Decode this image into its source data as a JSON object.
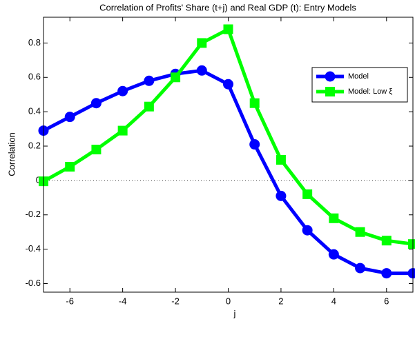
{
  "chart_data": {
    "type": "line",
    "title": "Correlation of Profits' Share (t+j) and Real GDP (t): Entry Models",
    "x_label": "j",
    "y_label": "Correlation",
    "x": [
      -7,
      -6,
      -5,
      -4,
      -3,
      -2,
      -1,
      0,
      1,
      2,
      3,
      4,
      5,
      6,
      7
    ],
    "series": [
      {
        "name": "Model",
        "color": "#0000ff",
        "marker": "circle",
        "values": [
          0.29,
          0.37,
          0.45,
          0.52,
          0.58,
          0.62,
          0.64,
          0.56,
          0.21,
          -0.09,
          -0.29,
          -0.43,
          -0.51,
          -0.54,
          -0.54
        ]
      },
      {
        "name": "Model: Low ξ",
        "color": "#00ff00",
        "marker": "square",
        "values": [
          -0.005,
          0.08,
          0.18,
          0.29,
          0.43,
          0.6,
          0.8,
          0.88,
          0.45,
          0.12,
          -0.08,
          -0.22,
          -0.3,
          -0.35,
          -0.37
        ]
      }
    ],
    "xlim": [
      -7,
      7
    ],
    "xticks": [
      -6,
      -4,
      -2,
      0,
      2,
      4,
      6
    ],
    "ylim": [
      -0.65,
      0.95
    ],
    "yticks": [
      -0.6,
      -0.4,
      -0.2,
      0,
      0.2,
      0.4,
      0.6,
      0.8
    ],
    "legend": "upper right",
    "zero_line": true
  }
}
